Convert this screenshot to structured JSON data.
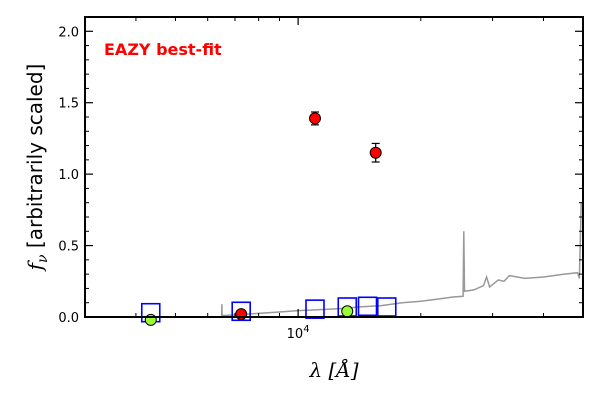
{
  "chart_data": {
    "type": "scatter",
    "title": "",
    "annotation": {
      "text": "EAZY best-fit",
      "color": "#ff0000",
      "position": "top-left"
    },
    "xlabel": "λ [Å]",
    "ylabel": "f_ν [arbitrarily scaled]",
    "xscale": "log",
    "xlim": [
      3000,
      50000
    ],
    "ylim": [
      0,
      2.1
    ],
    "grid": false,
    "xticks": [
      {
        "value": 10000,
        "label": "10^4"
      }
    ],
    "yticks": [
      {
        "value": 0.0,
        "label": "0.0"
      },
      {
        "value": 0.5,
        "label": "0.5"
      },
      {
        "value": 1.0,
        "label": "1.0"
      },
      {
        "value": 1.5,
        "label": "1.5"
      },
      {
        "value": 2.0,
        "label": "2.0"
      }
    ],
    "series": [
      {
        "type": "line",
        "color": "#999999",
        "points": [
          [
            3000,
            0.0
          ],
          [
            3500,
            0.0
          ],
          [
            4000,
            0.0
          ],
          [
            4500,
            0.0
          ],
          [
            5000,
            0.0
          ],
          [
            5500,
            0.0
          ],
          [
            6000,
            0.0
          ],
          [
            6490,
            0.0
          ],
          [
            6500,
            0.09
          ],
          [
            6510,
            0.01
          ],
          [
            7000,
            0.015
          ],
          [
            7500,
            0.02
          ],
          [
            8000,
            0.025
          ],
          [
            9000,
            0.035
          ],
          [
            10000,
            0.045
          ],
          [
            11000,
            0.05
          ],
          [
            12000,
            0.055
          ],
          [
            13000,
            0.06
          ],
          [
            14000,
            0.07
          ],
          [
            16000,
            0.08
          ],
          [
            18000,
            0.1
          ],
          [
            20000,
            0.11
          ],
          [
            22000,
            0.125
          ],
          [
            24000,
            0.14
          ],
          [
            25400,
            0.145
          ],
          [
            25500,
            0.6
          ],
          [
            25600,
            0.18
          ],
          [
            27000,
            0.19
          ],
          [
            28500,
            0.22
          ],
          [
            29000,
            0.28
          ],
          [
            29500,
            0.21
          ],
          [
            31000,
            0.26
          ],
          [
            32000,
            0.25
          ],
          [
            33000,
            0.29
          ],
          [
            36000,
            0.27
          ],
          [
            40000,
            0.28
          ],
          [
            45000,
            0.3
          ],
          [
            48500,
            0.31
          ],
          [
            49000,
            0.27
          ],
          [
            49500,
            0.8
          ],
          [
            50000,
            0.8
          ]
        ]
      },
      {
        "type": "model_photometry",
        "marker": "open-square",
        "color": "#0000ff",
        "points": [
          [
            4350,
            0.03
          ],
          [
            7250,
            0.04
          ],
          [
            11000,
            0.055
          ],
          [
            13200,
            0.07
          ],
          [
            14800,
            0.075
          ],
          [
            16500,
            0.07
          ]
        ]
      },
      {
        "type": "detections",
        "marker": "circle",
        "color": "#ff0000",
        "points": [
          {
            "x": 7250,
            "y": 0.02,
            "err": 0.0
          },
          {
            "x": 11000,
            "y": 1.39,
            "err": 0.045
          },
          {
            "x": 15500,
            "y": 1.15,
            "err": 0.065
          }
        ]
      },
      {
        "type": "low_signal",
        "marker": "circle",
        "color": "#99ff33",
        "points": [
          {
            "x": 4350,
            "y": -0.02,
            "err": 0.0
          },
          {
            "x": 13200,
            "y": 0.04,
            "err": 0.025
          }
        ]
      }
    ]
  }
}
